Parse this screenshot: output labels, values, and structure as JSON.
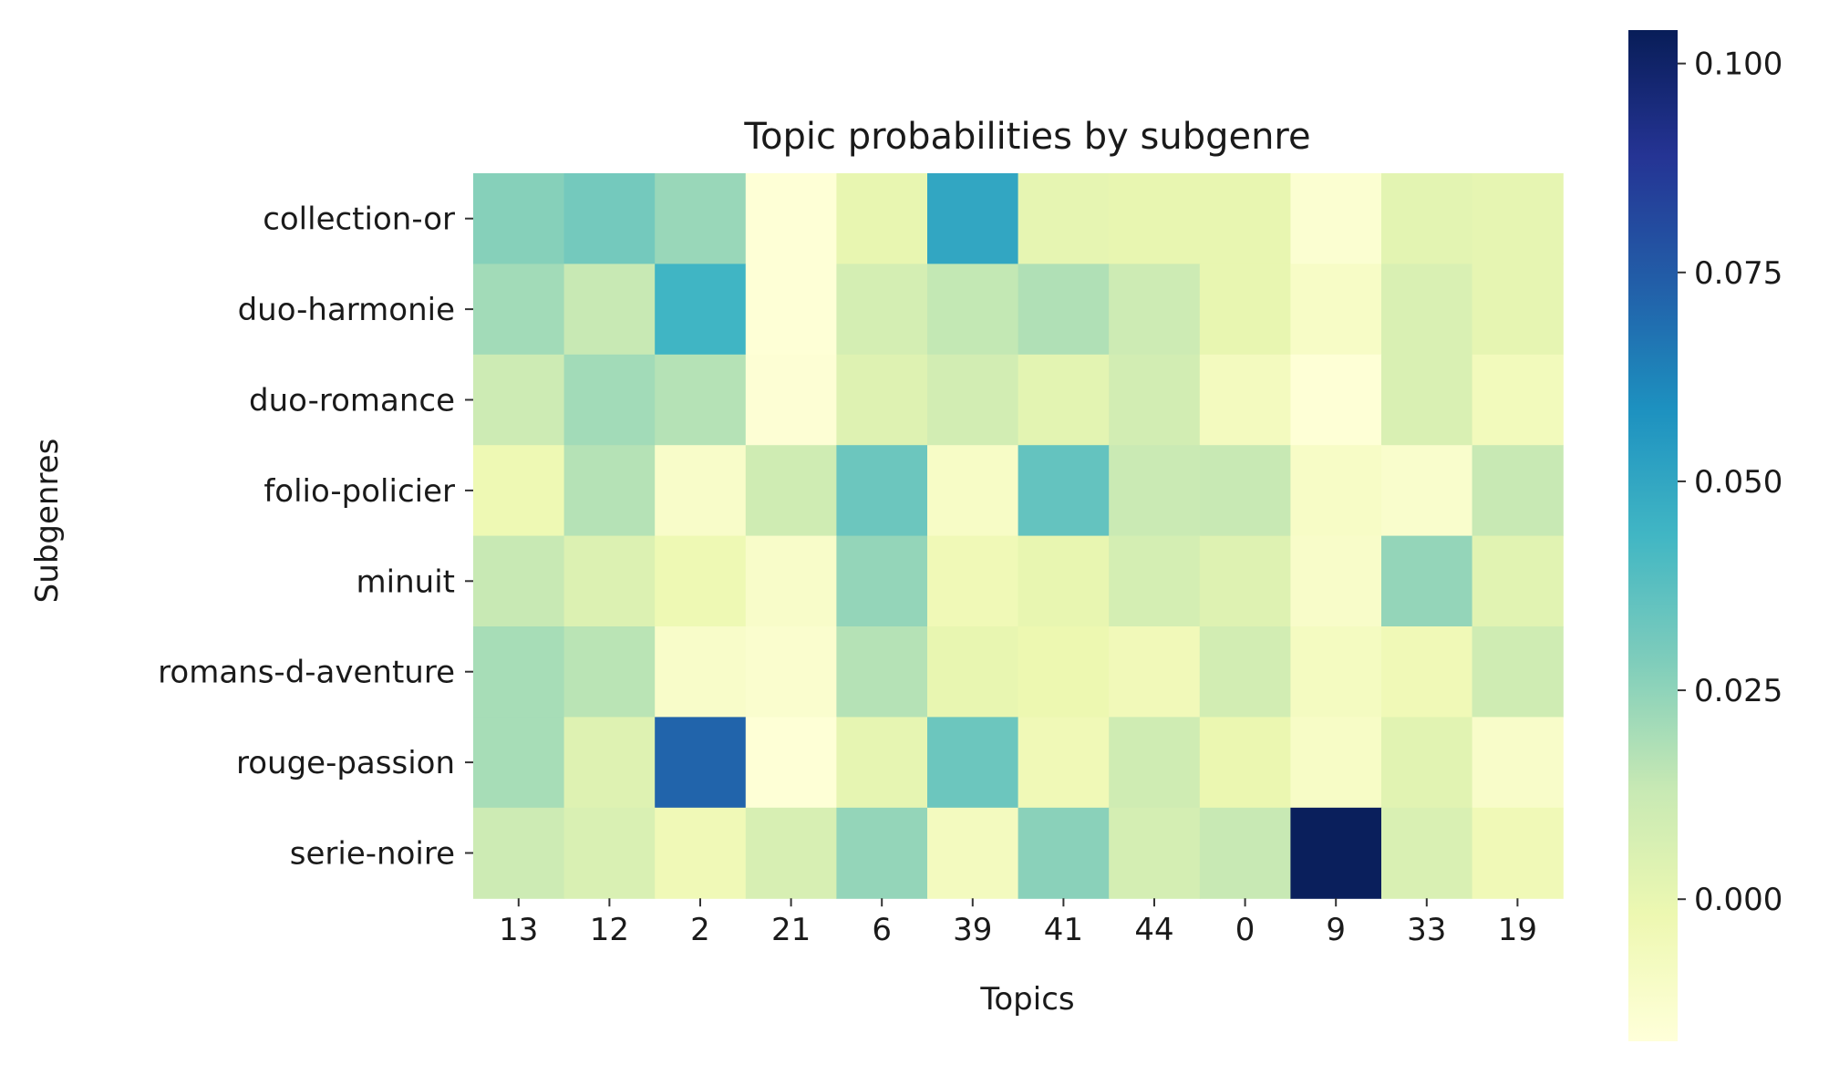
{
  "chart_data": {
    "type": "heatmap",
    "title": "Topic probabilities by subgenre",
    "xlabel": "Topics",
    "ylabel": "Subgenres",
    "x_categories": [
      "13",
      "12",
      "2",
      "21",
      "6",
      "39",
      "41",
      "44",
      "0",
      "9",
      "33",
      "19"
    ],
    "y_categories": [
      "collection-or",
      "duo-harmonie",
      "duo-romance",
      "folio-policier",
      "minuit",
      "romans-d-aventure",
      "rouge-passion",
      "serie-noire"
    ],
    "values": [
      [
        0.027,
        0.031,
        0.023,
        -0.016,
        0.0,
        0.05,
        0.001,
        0.0,
        0.0,
        -0.014,
        0.002,
        0.001
      ],
      [
        0.021,
        0.013,
        0.044,
        -0.016,
        0.008,
        0.014,
        0.018,
        0.011,
        0.0,
        -0.01,
        0.006,
        0.001
      ],
      [
        0.011,
        0.021,
        0.017,
        -0.015,
        0.004,
        0.009,
        0.002,
        0.009,
        -0.007,
        -0.016,
        0.006,
        -0.006
      ],
      [
        -0.003,
        0.017,
        -0.011,
        0.01,
        0.033,
        -0.01,
        0.035,
        0.012,
        0.013,
        -0.01,
        -0.012,
        0.013
      ],
      [
        0.013,
        0.005,
        -0.003,
        -0.011,
        0.024,
        -0.004,
        0.0,
        0.008,
        0.004,
        -0.011,
        0.024,
        0.003
      ],
      [
        0.02,
        0.016,
        -0.011,
        -0.013,
        0.017,
        0.0,
        -0.002,
        -0.005,
        0.009,
        -0.008,
        -0.004,
        0.01
      ],
      [
        0.02,
        0.004,
        0.072,
        -0.016,
        0.001,
        0.033,
        -0.004,
        0.01,
        -0.001,
        -0.01,
        0.003,
        -0.011
      ],
      [
        0.011,
        0.006,
        -0.004,
        0.007,
        0.024,
        -0.007,
        0.026,
        0.008,
        0.013,
        0.103,
        0.006,
        -0.004
      ]
    ],
    "colorbar": {
      "min": -0.017,
      "max": 0.104,
      "ticks": [
        "0.000",
        "0.025",
        "0.050",
        "0.075",
        "0.100"
      ],
      "colormap": "YlGnBu"
    }
  }
}
